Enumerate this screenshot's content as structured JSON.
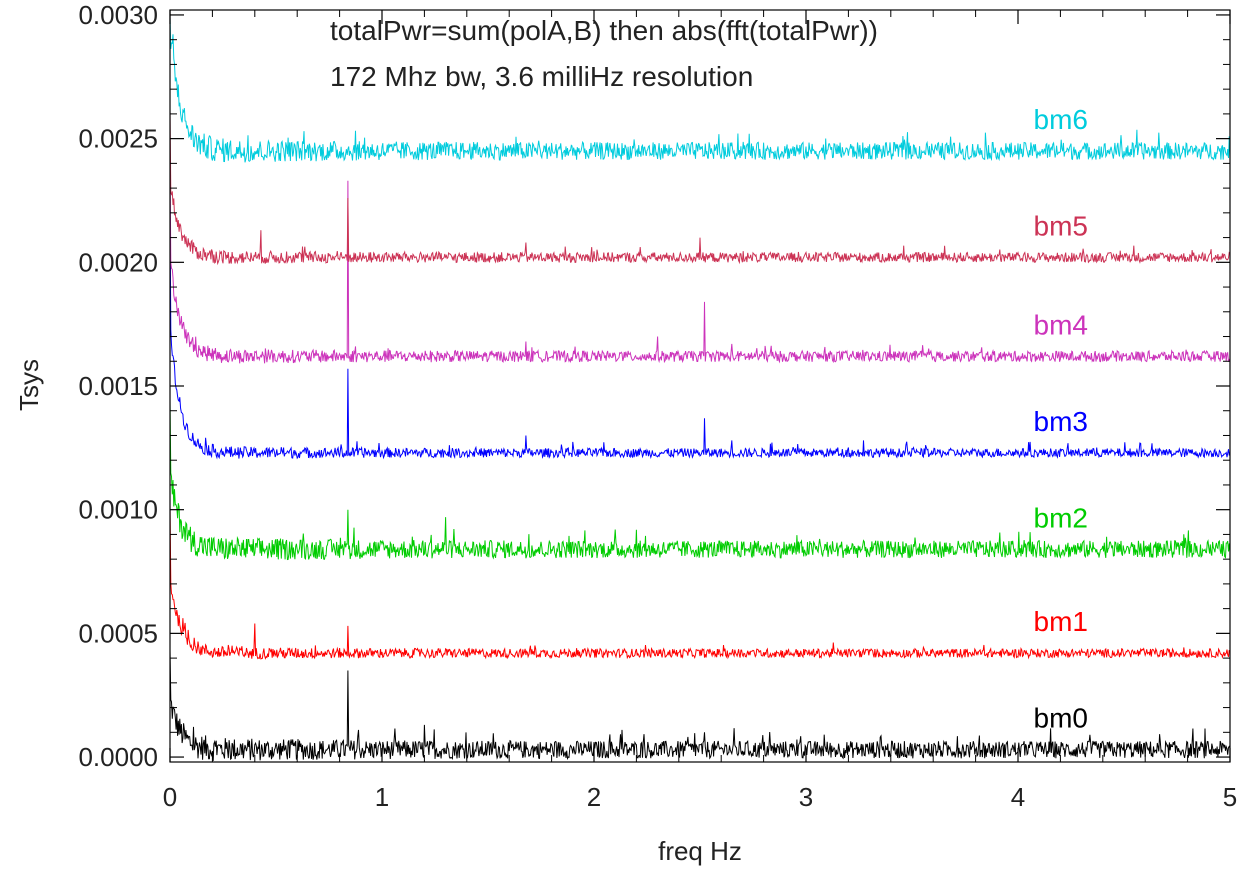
{
  "chart_data": {
    "type": "line",
    "title_lines": [
      "totalPwr=sum(polA,B) then abs(fft(totalPwr))",
      "172 Mhz bw, 3.6 milliHz resolution"
    ],
    "xlabel": "freq Hz",
    "ylabel": "Tsys",
    "xlim": [
      0,
      5
    ],
    "ylim": [
      -2e-05,
      0.00302
    ],
    "x_ticks": [
      0,
      1,
      2,
      3,
      4,
      5
    ],
    "x_tick_labels": [
      "0",
      "1",
      "2",
      "3",
      "4",
      "5"
    ],
    "y_ticks": [
      0.0,
      0.0005,
      0.001,
      0.0015,
      0.002,
      0.0025,
      0.003
    ],
    "y_tick_labels": [
      "0.0000",
      "0.0005",
      "0.0010",
      "0.0015",
      "0.0020",
      "0.0025",
      "0.0030"
    ],
    "grid": false,
    "series": [
      {
        "name": "bm0",
        "color": "#000000",
        "baseline": 3e-05,
        "noise": 3.5e-05,
        "decay_amp": 0.0002,
        "peaks": [
          [
            0.84,
            0.00035
          ],
          [
            1.2,
            0.00013
          ],
          [
            2.52,
            0.0001
          ],
          [
            3.35,
            8e-05
          ]
        ]
      },
      {
        "name": "bm1",
        "color": "#ff0000",
        "baseline": 0.00042,
        "noise": 1.8e-05,
        "decay_amp": 0.0003,
        "peaks": [
          [
            0.84,
            0.00053
          ],
          [
            0.4,
            0.00054
          ],
          [
            1.7,
            0.00045
          ]
        ]
      },
      {
        "name": "bm2",
        "color": "#00cc00",
        "baseline": 0.00084,
        "noise": 3.5e-05,
        "decay_amp": 0.0003,
        "peaks": [
          [
            0.84,
            0.001
          ],
          [
            1.3,
            0.00097
          ],
          [
            2.1,
            0.00092
          ]
        ]
      },
      {
        "name": "bm3",
        "color": "#0000ff",
        "baseline": 0.00123,
        "noise": 1.8e-05,
        "decay_amp": 0.0005,
        "peaks": [
          [
            0.84,
            0.00157
          ],
          [
            2.52,
            0.00137
          ],
          [
            1.68,
            0.0013
          ],
          [
            2.65,
            0.00128
          ],
          [
            3.27,
            0.00128
          ]
        ]
      },
      {
        "name": "bm4",
        "color": "#cc33bb",
        "baseline": 0.00162,
        "noise": 2.2e-05,
        "decay_amp": 0.0004,
        "peaks": [
          [
            0.84,
            0.00233
          ],
          [
            2.52,
            0.00184
          ],
          [
            2.3,
            0.0017
          ],
          [
            2.65,
            0.00167
          ],
          [
            1.68,
            0.00168
          ]
        ]
      },
      {
        "name": "bm5",
        "color": "#cc3355",
        "baseline": 0.00202,
        "noise": 2e-05,
        "decay_amp": 0.0003,
        "peaks": [
          [
            0.84,
            0.00226
          ],
          [
            0.43,
            0.00213
          ],
          [
            2.5,
            0.0021
          ],
          [
            1.68,
            0.00208
          ]
        ]
      },
      {
        "name": "bm6",
        "color": "#00ccdd",
        "baseline": 0.00245,
        "noise": 3.5e-05,
        "decay_amp": 0.0005,
        "peaks": []
      }
    ]
  }
}
